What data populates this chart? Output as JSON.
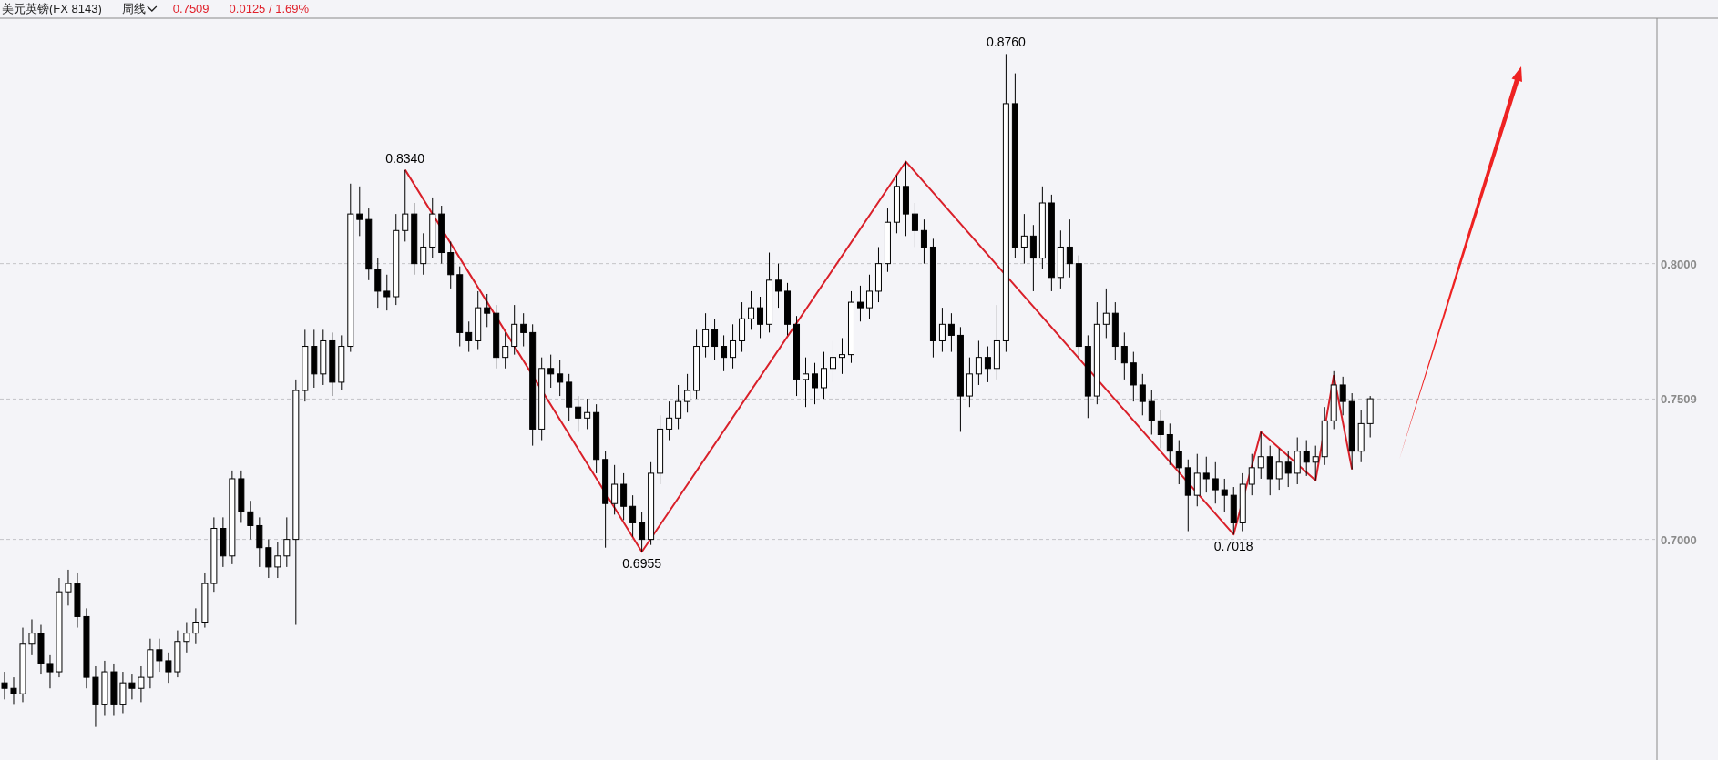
{
  "chart_data": {
    "type": "candlestick",
    "title": "美元英镑(FX 8143)",
    "subtitle": "周线",
    "annotations": [
      "0.7509",
      "0.0125 / 1.69%",
      {
        "text": "0.8760",
        "y": 0.876
      }
    ],
    "categories": [
      null,
      null,
      null,
      null,
      null,
      null,
      null,
      null,
      null,
      null,
      null,
      null,
      null,
      null,
      null,
      null,
      null,
      null,
      null,
      null,
      null,
      null,
      null,
      null,
      null,
      null,
      null,
      null,
      null,
      null,
      null,
      null,
      null,
      null,
      null,
      null,
      null,
      null,
      null,
      null,
      null,
      null,
      null,
      null,
      null,
      null,
      null,
      null,
      null,
      null,
      null,
      null,
      null,
      null,
      null,
      null,
      null,
      null,
      null,
      null,
      null,
      null,
      null,
      null,
      null,
      null,
      null,
      null,
      null,
      null,
      null,
      null,
      null,
      null,
      null,
      null,
      null,
      null,
      null,
      null,
      null,
      null,
      null,
      null,
      null,
      null,
      null,
      null,
      null,
      null,
      null,
      null,
      null,
      null,
      null,
      null,
      null,
      null,
      null,
      null,
      null,
      null,
      null,
      null,
      null,
      null,
      null,
      null,
      null,
      null,
      null,
      null,
      null,
      null,
      null,
      null,
      null,
      null,
      null,
      null,
      null,
      null,
      null,
      null,
      null,
      null,
      null,
      null,
      null,
      null,
      null,
      null,
      null,
      null,
      null,
      null,
      null,
      null,
      null,
      null,
      null,
      null,
      null,
      null,
      null,
      null,
      null,
      null,
      null,
      null,
      null,
      null,
      null,
      null,
      null,
      null,
      null,
      null,
      null,
      null,
      null,
      null,
      null,
      null,
      null,
      null,
      null,
      null,
      null,
      null,
      null,
      null,
      null,
      null,
      null,
      null,
      null,
      null,
      null,
      null,
      null,
      null
    ],
    "ohlc": [
      [
        0.648,
        0.652,
        0.642,
        0.646
      ],
      [
        0.646,
        0.65,
        0.64,
        0.644
      ],
      [
        0.644,
        0.668,
        0.641,
        0.662
      ],
      [
        0.662,
        0.671,
        0.658,
        0.666
      ],
      [
        0.666,
        0.669,
        0.651,
        0.655
      ],
      [
        0.655,
        0.658,
        0.646,
        0.652
      ],
      [
        0.652,
        0.686,
        0.65,
        0.681
      ],
      [
        0.681,
        0.689,
        0.676,
        0.684
      ],
      [
        0.684,
        0.688,
        0.668,
        0.672
      ],
      [
        0.672,
        0.675,
        0.646,
        0.65
      ],
      [
        0.65,
        0.654,
        0.632,
        0.64
      ],
      [
        0.64,
        0.656,
        0.636,
        0.652
      ],
      [
        0.652,
        0.655,
        0.636,
        0.64
      ],
      [
        0.64,
        0.652,
        0.637,
        0.648
      ],
      [
        0.648,
        0.651,
        0.642,
        0.646
      ],
      [
        0.646,
        0.654,
        0.641,
        0.65
      ],
      [
        0.65,
        0.664,
        0.646,
        0.66
      ],
      [
        0.66,
        0.664,
        0.652,
        0.656
      ],
      [
        0.656,
        0.659,
        0.648,
        0.652
      ],
      [
        0.652,
        0.667,
        0.65,
        0.663
      ],
      [
        0.663,
        0.67,
        0.659,
        0.666
      ],
      [
        0.666,
        0.675,
        0.662,
        0.67
      ],
      [
        0.67,
        0.688,
        0.668,
        0.684
      ],
      [
        0.684,
        0.708,
        0.681,
        0.704
      ],
      [
        0.704,
        0.708,
        0.69,
        0.694
      ],
      [
        0.694,
        0.725,
        0.691,
        0.722
      ],
      [
        0.722,
        0.725,
        0.706,
        0.71
      ],
      [
        0.71,
        0.714,
        0.7,
        0.705
      ],
      [
        0.705,
        0.708,
        0.69,
        0.697
      ],
      [
        0.697,
        0.7,
        0.686,
        0.69
      ],
      [
        0.69,
        0.699,
        0.686,
        0.694
      ],
      [
        0.694,
        0.708,
        0.69,
        0.7
      ],
      [
        0.7,
        0.758,
        0.669,
        0.754
      ],
      [
        0.754,
        0.776,
        0.75,
        0.77
      ],
      [
        0.77,
        0.776,
        0.755,
        0.76
      ],
      [
        0.76,
        0.776,
        0.756,
        0.772
      ],
      [
        0.772,
        0.775,
        0.752,
        0.757
      ],
      [
        0.757,
        0.774,
        0.754,
        0.77
      ],
      [
        0.77,
        0.829,
        0.768,
        0.818
      ],
      [
        0.818,
        0.828,
        0.81,
        0.816
      ],
      [
        0.816,
        0.82,
        0.794,
        0.798
      ],
      [
        0.798,
        0.802,
        0.784,
        0.79
      ],
      [
        0.79,
        0.796,
        0.783,
        0.788
      ],
      [
        0.788,
        0.818,
        0.785,
        0.812
      ],
      [
        0.812,
        0.834,
        0.808,
        0.818
      ],
      [
        0.818,
        0.822,
        0.796,
        0.8
      ],
      [
        0.8,
        0.811,
        0.796,
        0.806
      ],
      [
        0.806,
        0.824,
        0.802,
        0.818
      ],
      [
        0.818,
        0.821,
        0.8,
        0.804
      ],
      [
        0.804,
        0.808,
        0.791,
        0.796
      ],
      [
        0.796,
        0.799,
        0.77,
        0.775
      ],
      [
        0.775,
        0.779,
        0.768,
        0.772
      ],
      [
        0.772,
        0.79,
        0.769,
        0.784
      ],
      [
        0.784,
        0.789,
        0.777,
        0.782
      ],
      [
        0.782,
        0.785,
        0.762,
        0.766
      ],
      [
        0.766,
        0.775,
        0.762,
        0.77
      ],
      [
        0.77,
        0.785,
        0.767,
        0.778
      ],
      [
        0.778,
        0.782,
        0.77,
        0.775
      ],
      [
        0.775,
        0.778,
        0.734,
        0.74
      ],
      [
        0.74,
        0.766,
        0.736,
        0.762
      ],
      [
        0.762,
        0.767,
        0.755,
        0.76
      ],
      [
        0.76,
        0.765,
        0.752,
        0.757
      ],
      [
        0.757,
        0.76,
        0.743,
        0.748
      ],
      [
        0.748,
        0.752,
        0.739,
        0.744
      ],
      [
        0.744,
        0.751,
        0.74,
        0.746
      ],
      [
        0.746,
        0.749,
        0.724,
        0.729
      ],
      [
        0.729,
        0.732,
        0.697,
        0.713
      ],
      [
        0.713,
        0.727,
        0.709,
        0.72
      ],
      [
        0.72,
        0.724,
        0.707,
        0.712
      ],
      [
        0.712,
        0.716,
        0.701,
        0.706
      ],
      [
        0.706,
        0.71,
        0.6955,
        0.7
      ],
      [
        0.7,
        0.728,
        0.698,
        0.724
      ],
      [
        0.724,
        0.745,
        0.72,
        0.74
      ],
      [
        0.74,
        0.75,
        0.736,
        0.744
      ],
      [
        0.744,
        0.756,
        0.74,
        0.75
      ],
      [
        0.75,
        0.76,
        0.746,
        0.754
      ],
      [
        0.754,
        0.776,
        0.751,
        0.77
      ],
      [
        0.77,
        0.782,
        0.766,
        0.776
      ],
      [
        0.776,
        0.78,
        0.765,
        0.77
      ],
      [
        0.77,
        0.774,
        0.761,
        0.766
      ],
      [
        0.766,
        0.778,
        0.762,
        0.772
      ],
      [
        0.772,
        0.786,
        0.768,
        0.78
      ],
      [
        0.78,
        0.79,
        0.776,
        0.784
      ],
      [
        0.784,
        0.788,
        0.773,
        0.778
      ],
      [
        0.778,
        0.804,
        0.775,
        0.794
      ],
      [
        0.794,
        0.8,
        0.784,
        0.79
      ],
      [
        0.79,
        0.793,
        0.774,
        0.778
      ],
      [
        0.778,
        0.781,
        0.752,
        0.758
      ],
      [
        0.758,
        0.766,
        0.748,
        0.76
      ],
      [
        0.76,
        0.764,
        0.749,
        0.755
      ],
      [
        0.755,
        0.768,
        0.751,
        0.762
      ],
      [
        0.762,
        0.772,
        0.757,
        0.766
      ],
      [
        0.766,
        0.773,
        0.76,
        0.767
      ],
      [
        0.767,
        0.79,
        0.764,
        0.786
      ],
      [
        0.786,
        0.792,
        0.779,
        0.784
      ],
      [
        0.784,
        0.796,
        0.78,
        0.79
      ],
      [
        0.79,
        0.806,
        0.786,
        0.8
      ],
      [
        0.8,
        0.82,
        0.797,
        0.815
      ],
      [
        0.815,
        0.832,
        0.811,
        0.828
      ],
      [
        0.828,
        0.837,
        0.81,
        0.818
      ],
      [
        0.818,
        0.822,
        0.806,
        0.812
      ],
      [
        0.812,
        0.816,
        0.8,
        0.806
      ],
      [
        0.806,
        0.809,
        0.766,
        0.772
      ],
      [
        0.772,
        0.784,
        0.768,
        0.778
      ],
      [
        0.778,
        0.782,
        0.768,
        0.774
      ],
      [
        0.774,
        0.777,
        0.739,
        0.752
      ],
      [
        0.752,
        0.766,
        0.748,
        0.76
      ],
      [
        0.76,
        0.772,
        0.756,
        0.766
      ],
      [
        0.766,
        0.77,
        0.757,
        0.762
      ],
      [
        0.762,
        0.785,
        0.758,
        0.772
      ],
      [
        0.772,
        0.876,
        0.768,
        0.858
      ],
      [
        0.858,
        0.869,
        0.802,
        0.806
      ],
      [
        0.806,
        0.818,
        0.8,
        0.81
      ],
      [
        0.81,
        0.814,
        0.79,
        0.802
      ],
      [
        0.802,
        0.828,
        0.798,
        0.822
      ],
      [
        0.822,
        0.825,
        0.79,
        0.795
      ],
      [
        0.795,
        0.812,
        0.791,
        0.806
      ],
      [
        0.806,
        0.816,
        0.795,
        0.8
      ],
      [
        0.8,
        0.803,
        0.765,
        0.77
      ],
      [
        0.77,
        0.774,
        0.744,
        0.752
      ],
      [
        0.752,
        0.786,
        0.749,
        0.778
      ],
      [
        0.778,
        0.791,
        0.773,
        0.782
      ],
      [
        0.782,
        0.786,
        0.765,
        0.77
      ],
      [
        0.77,
        0.775,
        0.758,
        0.764
      ],
      [
        0.764,
        0.768,
        0.75,
        0.756
      ],
      [
        0.756,
        0.76,
        0.745,
        0.75
      ],
      [
        0.75,
        0.754,
        0.738,
        0.743
      ],
      [
        0.743,
        0.747,
        0.733,
        0.738
      ],
      [
        0.738,
        0.742,
        0.727,
        0.732
      ],
      [
        0.732,
        0.736,
        0.72,
        0.726
      ],
      [
        0.726,
        0.729,
        0.703,
        0.716
      ],
      [
        0.716,
        0.731,
        0.712,
        0.724
      ],
      [
        0.724,
        0.73,
        0.717,
        0.722
      ],
      [
        0.722,
        0.728,
        0.713,
        0.718
      ],
      [
        0.718,
        0.722,
        0.71,
        0.716
      ],
      [
        0.716,
        0.719,
        0.7018,
        0.706
      ],
      [
        0.706,
        0.724,
        0.703,
        0.72
      ],
      [
        0.72,
        0.731,
        0.716,
        0.726
      ],
      [
        0.726,
        0.739,
        0.722,
        0.73
      ],
      [
        0.73,
        0.734,
        0.716,
        0.722
      ],
      [
        0.722,
        0.733,
        0.718,
        0.728
      ],
      [
        0.728,
        0.732,
        0.719,
        0.724
      ],
      [
        0.724,
        0.737,
        0.72,
        0.732
      ],
      [
        0.732,
        0.736,
        0.723,
        0.728
      ],
      [
        0.728,
        0.734,
        0.7214,
        0.73
      ],
      [
        0.73,
        0.748,
        0.727,
        0.743
      ],
      [
        0.743,
        0.761,
        0.74,
        0.756
      ],
      [
        0.756,
        0.759,
        0.745,
        0.75
      ],
      [
        0.75,
        0.753,
        0.7254,
        0.732
      ],
      [
        0.732,
        0.747,
        0.728,
        0.742
      ],
      [
        0.742,
        0.752,
        0.737,
        0.751
      ],
      null,
      null,
      null,
      null,
      null,
      null,
      null,
      null,
      null,
      null,
      null,
      null,
      null,
      null,
      null,
      null,
      null,
      null,
      null,
      null,
      null,
      null,
      null,
      null,
      null,
      null,
      null,
      null,
      null,
      null,
      null
    ],
    "series": [
      {
        "type": "line",
        "color": "#d9202a",
        "values": [
          null,
          null,
          null,
          null,
          null,
          null,
          null,
          null,
          null,
          null,
          null,
          null,
          null,
          null,
          null,
          null,
          null,
          null,
          null,
          null,
          null,
          null,
          null,
          null,
          null,
          null,
          null,
          null,
          null,
          null,
          null,
          null,
          null,
          null,
          null,
          null,
          null,
          null,
          null,
          null,
          null,
          null,
          null,
          null,
          0.834,
          null,
          null,
          null,
          null,
          null,
          null,
          null,
          null,
          null,
          null,
          null,
          null,
          null,
          null,
          null,
          null,
          null,
          null,
          null,
          null,
          null,
          null,
          null,
          null,
          null,
          0.6955,
          null,
          null,
          null,
          null,
          null,
          null,
          null,
          null,
          null,
          null,
          null,
          null,
          null,
          null,
          null,
          null,
          null,
          null,
          null,
          null,
          null,
          null,
          null,
          null,
          null,
          null,
          null,
          null,
          0.837,
          null,
          null,
          null,
          null,
          null,
          null,
          null,
          null,
          null,
          null,
          null,
          null,
          null,
          null,
          null,
          null,
          null,
          null,
          null,
          null,
          null,
          null,
          null,
          null,
          null,
          null,
          null,
          null,
          null,
          null,
          null,
          null,
          null,
          null,
          null,
          0.7018,
          null,
          null,
          0.739,
          null,
          null,
          null,
          null,
          null,
          0.7214,
          null,
          0.7594,
          null,
          0.7254,
          null,
          null,
          null,
          null,
          null,
          null,
          null,
          null,
          null,
          null,
          null,
          null,
          null,
          null,
          null,
          null,
          null,
          null,
          null,
          null,
          null,
          null,
          null,
          null,
          null,
          null,
          null,
          null,
          null,
          null,
          null,
          null,
          null
        ],
        "value_labels": [
          null,
          null,
          null,
          null,
          null,
          null,
          null,
          null,
          null,
          null,
          null,
          null,
          null,
          null,
          null,
          null,
          null,
          null,
          null,
          null,
          null,
          null,
          null,
          null,
          null,
          null,
          null,
          null,
          null,
          null,
          null,
          null,
          null,
          null,
          null,
          null,
          null,
          null,
          null,
          null,
          null,
          null,
          null,
          null,
          "0.8340",
          null,
          null,
          null,
          null,
          null,
          null,
          null,
          null,
          null,
          null,
          null,
          null,
          null,
          null,
          null,
          null,
          null,
          null,
          null,
          null,
          null,
          null,
          null,
          null,
          null,
          "0.6955",
          null,
          null,
          null,
          null,
          null,
          null,
          null,
          null,
          null,
          null,
          null,
          null,
          null,
          null,
          null,
          null,
          null,
          null,
          null,
          null,
          null,
          null,
          null,
          null,
          null,
          null,
          null,
          null,
          null,
          null,
          null,
          null,
          null,
          null,
          null,
          null,
          null,
          null,
          null,
          null,
          null,
          null,
          null,
          null,
          null,
          null,
          null,
          null,
          null,
          null,
          null,
          null,
          null,
          null,
          null,
          null,
          null,
          null,
          null,
          null,
          null,
          null,
          null,
          null,
          "0.7018",
          null,
          null,
          null,
          null,
          null,
          null,
          null,
          null,
          null,
          null,
          null,
          null,
          null,
          null,
          null,
          null,
          null,
          null,
          null,
          null,
          null,
          null,
          null,
          null,
          null,
          null,
          null,
          null,
          null,
          null,
          null,
          null,
          null,
          null,
          null,
          null,
          null,
          null,
          null,
          null,
          null,
          null,
          null,
          null,
          null,
          null
        ]
      }
    ],
    "ylim": [
      0.62,
      0.889
    ],
    "yticks": [
      {
        "value": 0.8,
        "label": "0.8000"
      },
      {
        "value": 0.7509,
        "label": "0.7509"
      },
      {
        "value": 0.7,
        "label": "0.7000"
      }
    ],
    "grid": "y",
    "tick_labels": "y"
  }
}
